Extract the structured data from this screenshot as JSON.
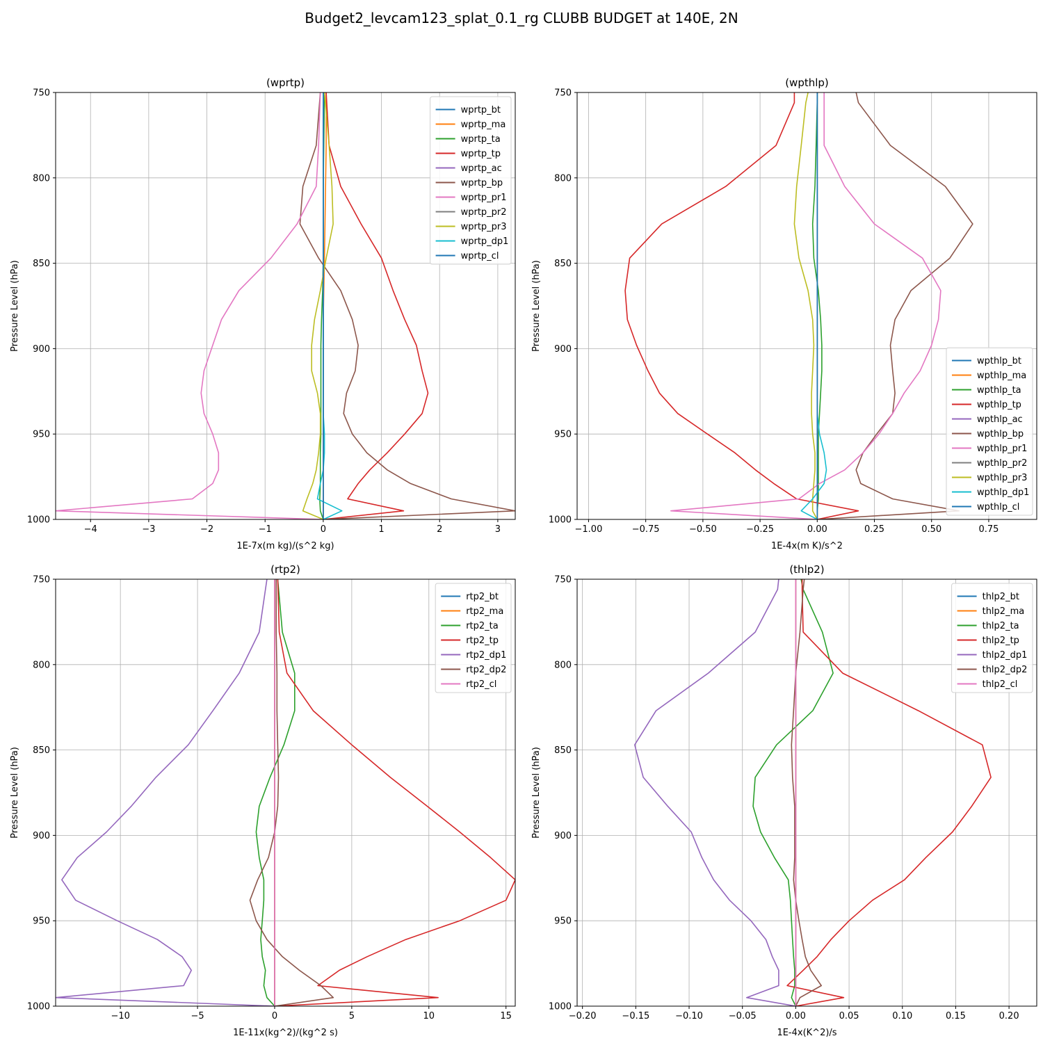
{
  "title": "Budget2_levcam123_splat_0.1_rg CLUBB BUDGET at 140E, 2N",
  "colors": [
    "#1f77b4",
    "#ff7f0e",
    "#2ca02c",
    "#d62728",
    "#9467bd",
    "#8c564b",
    "#e377c2",
    "#7f7f7f",
    "#bcbd22",
    "#17becf",
    "#1f77b4"
  ],
  "chart_data": [
    {
      "type": "line",
      "title": "(wprtp)",
      "xlabel": "1E-7x(m kg)/(s^2 kg)",
      "ylabel": "Pressure Level (hPa)",
      "xlim": [
        -4.6,
        3.3
      ],
      "ylim": [
        1000,
        750
      ],
      "xticks": [
        -4,
        -3,
        -2,
        -1,
        0,
        1,
        2,
        3
      ],
      "xtick_labels": [
        "−4",
        "−3",
        "−2",
        "−1",
        "0",
        "1",
        "2",
        "3"
      ],
      "yticks": [
        750,
        800,
        850,
        900,
        950,
        1000
      ],
      "grid": true,
      "legend_loc": "upper-right",
      "levels": [
        750,
        781,
        805,
        827,
        847,
        866,
        883,
        898,
        913,
        926,
        938,
        950,
        961,
        971,
        979,
        988,
        995,
        1000
      ],
      "series": [
        {
          "name": "wprtp_bt",
          "values": [
            0,
            0,
            0,
            0,
            0,
            0,
            0,
            0,
            0,
            0,
            0,
            0,
            0,
            0,
            0,
            0,
            0,
            0
          ]
        },
        {
          "name": "wprtp_ma",
          "values": [
            0.05,
            0.05,
            0.04,
            0.03,
            0.02,
            0.01,
            0,
            0,
            0,
            0,
            0,
            0,
            0,
            0,
            0,
            0,
            0,
            0
          ]
        },
        {
          "name": "wprtp_ta",
          "values": [
            0.02,
            0.01,
            0,
            0,
            0,
            -0.01,
            -0.03,
            -0.04,
            -0.04,
            -0.04,
            -0.04,
            -0.04,
            -0.05,
            -0.05,
            -0.05,
            -0.06,
            -0.05,
            0
          ]
        },
        {
          "name": "wprtp_tp",
          "values": [
            0.05,
            0.1,
            0.3,
            0.65,
            1.0,
            1.2,
            1.4,
            1.6,
            1.7,
            1.8,
            1.7,
            1.4,
            1.1,
            0.8,
            0.6,
            0.42,
            1.38,
            0
          ]
        },
        {
          "name": "wprtp_ac",
          "values": [
            0,
            0,
            0,
            0,
            0,
            0,
            0,
            0,
            0,
            0,
            0,
            0,
            0,
            0,
            0,
            0,
            0,
            0
          ]
        },
        {
          "name": "wprtp_bp",
          "values": [
            -0.05,
            -0.12,
            -0.35,
            -0.4,
            -0.08,
            0.3,
            0.5,
            0.6,
            0.55,
            0.4,
            0.35,
            0.5,
            0.75,
            1.1,
            1.5,
            2.2,
            3.3,
            0
          ]
        },
        {
          "name": "wprtp_pr1",
          "values": [
            -0.05,
            -0.08,
            -0.12,
            -0.45,
            -0.9,
            -1.45,
            -1.75,
            -1.9,
            -2.05,
            -2.1,
            -2.05,
            -1.9,
            -1.8,
            -1.8,
            -1.9,
            -2.25,
            -4.6,
            0
          ]
        },
        {
          "name": "wprtp_pr2",
          "values": [
            0,
            0,
            0,
            0,
            0,
            0,
            0,
            0,
            0,
            0,
            0,
            0,
            0,
            0,
            0,
            0,
            0,
            0
          ]
        },
        {
          "name": "wprtp_pr3",
          "values": [
            0.02,
            0.1,
            0.15,
            0.17,
            0.05,
            -0.05,
            -0.15,
            -0.2,
            -0.2,
            -0.1,
            -0.05,
            -0.05,
            -0.08,
            -0.12,
            -0.18,
            -0.28,
            -0.35,
            0
          ]
        },
        {
          "name": "wprtp_dp1",
          "values": [
            0,
            0,
            0,
            0,
            0,
            0,
            0,
            0,
            0,
            0,
            0,
            0.02,
            0.02,
            0,
            -0.05,
            -0.1,
            0.32,
            0
          ]
        },
        {
          "name": "wprtp_cl",
          "values": [
            0,
            0,
            0,
            0,
            0,
            0,
            0,
            0,
            0,
            0,
            0,
            0,
            0,
            0,
            0,
            0,
            0,
            0
          ]
        }
      ]
    },
    {
      "type": "line",
      "title": "(wpthlp)",
      "xlabel": "1E-4x(m K)/s^2",
      "ylabel": "Pressure Level (hPa)",
      "xlim": [
        -1.05,
        0.96
      ],
      "ylim": [
        1000,
        750
      ],
      "xticks": [
        -1.0,
        -0.75,
        -0.5,
        -0.25,
        0.0,
        0.25,
        0.5,
        0.75
      ],
      "xtick_labels": [
        "−1.00",
        "−0.75",
        "−0.50",
        "−0.25",
        "0.00",
        "0.25",
        "0.50",
        "0.75"
      ],
      "yticks": [
        750,
        800,
        850,
        900,
        950,
        1000
      ],
      "grid": true,
      "legend_loc": "lower-right",
      "levels": [
        750,
        756,
        781,
        805,
        827,
        847,
        866,
        883,
        898,
        913,
        926,
        938,
        950,
        961,
        971,
        979,
        988,
        995,
        1000
      ],
      "series": [
        {
          "name": "wpthlp_bt",
          "values": [
            0,
            0,
            0,
            0,
            0,
            0,
            0,
            0,
            0,
            0,
            0,
            0,
            0,
            0,
            0,
            0,
            0,
            0,
            0
          ]
        },
        {
          "name": "wpthlp_ma",
          "values": [
            0,
            0,
            0,
            0,
            0,
            0,
            0,
            0,
            0,
            0,
            0,
            0,
            0,
            0,
            0,
            0,
            0,
            0,
            0
          ]
        },
        {
          "name": "wpthlp_ta",
          "values": [
            0,
            0,
            -0.005,
            -0.01,
            -0.02,
            -0.015,
            0.005,
            0.015,
            0.02,
            0.02,
            0.015,
            0.01,
            0.005,
            0.005,
            0.005,
            0.005,
            0.005,
            0,
            0
          ]
        },
        {
          "name": "wpthlp_tp",
          "values": [
            -0.1,
            -0.1,
            -0.18,
            -0.4,
            -0.68,
            -0.82,
            -0.84,
            -0.83,
            -0.79,
            -0.74,
            -0.69,
            -0.61,
            -0.48,
            -0.36,
            -0.27,
            -0.19,
            -0.09,
            0.18,
            0
          ]
        },
        {
          "name": "wpthlp_ac",
          "values": [
            0,
            0,
            0,
            0,
            0,
            0,
            0,
            0,
            0,
            0,
            0,
            0,
            0,
            0,
            0,
            0,
            0,
            0,
            0
          ]
        },
        {
          "name": "wpthlp_bp",
          "values": [
            0.17,
            0.18,
            0.32,
            0.56,
            0.68,
            0.58,
            0.41,
            0.34,
            0.32,
            0.33,
            0.34,
            0.33,
            0.26,
            0.2,
            0.17,
            0.19,
            0.33,
            0.62,
            0
          ]
        },
        {
          "name": "wpthlp_pr1",
          "values": [
            0.03,
            0.03,
            0.03,
            0.12,
            0.25,
            0.46,
            0.54,
            0.53,
            0.5,
            0.45,
            0.38,
            0.33,
            0.27,
            0.2,
            0.12,
            0.01,
            -0.08,
            -0.64,
            0
          ]
        },
        {
          "name": "wpthlp_pr2",
          "values": [
            0,
            0,
            0,
            0,
            0,
            0,
            0,
            0,
            0,
            0,
            0,
            0,
            0,
            0,
            0,
            0,
            0,
            0,
            0
          ]
        },
        {
          "name": "wpthlp_pr3",
          "values": [
            -0.04,
            -0.05,
            -0.07,
            -0.09,
            -0.1,
            -0.08,
            -0.04,
            -0.02,
            -0.015,
            -0.02,
            -0.025,
            -0.025,
            -0.02,
            -0.01,
            -0.01,
            -0.015,
            -0.02,
            -0.02,
            0
          ]
        },
        {
          "name": "wpthlp_dp1",
          "values": [
            0,
            0,
            0,
            0,
            0,
            0,
            0,
            0,
            0,
            0,
            0,
            0,
            0.01,
            0.03,
            0.04,
            0.03,
            -0.02,
            -0.07,
            0
          ]
        },
        {
          "name": "wpthlp_cl",
          "values": [
            0,
            0,
            0,
            0,
            0,
            0,
            0,
            0,
            0,
            0,
            0,
            0,
            0,
            0,
            0,
            0,
            0,
            0,
            0
          ]
        }
      ]
    },
    {
      "type": "line",
      "title": "(rtp2)",
      "xlabel": "1E-11x(kg^2)/(kg^2 s)",
      "ylabel": "Pressure Level (hPa)",
      "xlim": [
        -14.2,
        15.6
      ],
      "ylim": [
        1000,
        750
      ],
      "xticks": [
        -10,
        -5,
        0,
        5,
        10,
        15
      ],
      "xtick_labels": [
        "−10",
        "−5",
        "0",
        "5",
        "10",
        "15"
      ],
      "yticks": [
        750,
        800,
        850,
        900,
        950,
        1000
      ],
      "grid": true,
      "legend_loc": "upper-right",
      "levels": [
        750,
        781,
        805,
        827,
        847,
        866,
        883,
        898,
        913,
        926,
        938,
        950,
        961,
        971,
        979,
        988,
        995,
        1000
      ],
      "series": [
        {
          "name": "rtp2_bt",
          "values": [
            0,
            0,
            0,
            0,
            0,
            0,
            0,
            0,
            0,
            0,
            0,
            0,
            0,
            0,
            0,
            0,
            0,
            0
          ]
        },
        {
          "name": "rtp2_ma",
          "values": [
            0,
            0,
            0,
            0,
            0,
            0,
            0,
            0,
            0,
            0,
            0,
            0,
            0,
            0,
            0,
            0,
            0,
            0
          ]
        },
        {
          "name": "rtp2_ta",
          "values": [
            0.2,
            0.5,
            1.3,
            1.3,
            0.6,
            -0.3,
            -1.0,
            -1.2,
            -1.0,
            -0.7,
            -0.7,
            -0.8,
            -0.9,
            -0.8,
            -0.6,
            -0.7,
            -0.5,
            0
          ]
        },
        {
          "name": "rtp2_tp",
          "values": [
            0.2,
            0.3,
            0.8,
            2.5,
            5.0,
            7.5,
            9.9,
            12.0,
            14.0,
            15.6,
            15.0,
            12.0,
            8.5,
            6.0,
            4.2,
            2.8,
            10.6,
            0
          ]
        },
        {
          "name": "rtp2_dp1",
          "values": [
            -0.5,
            -1.0,
            -2.3,
            -4.0,
            -5.6,
            -7.7,
            -9.3,
            -10.9,
            -12.8,
            -13.8,
            -12.9,
            -10.2,
            -7.6,
            -6.0,
            -5.4,
            -5.9,
            -14.2,
            0
          ]
        },
        {
          "name": "rtp2_dp2",
          "values": [
            0.1,
            0.1,
            0.15,
            0.15,
            0.2,
            0.25,
            0.2,
            0,
            -0.4,
            -1.1,
            -1.6,
            -1.2,
            -0.5,
            0.5,
            1.6,
            3.0,
            3.8,
            0
          ]
        },
        {
          "name": "rtp2_cl",
          "values": [
            0,
            0,
            0,
            0,
            0,
            0,
            0,
            0,
            0,
            0,
            0,
            0,
            0,
            0,
            0,
            0,
            0,
            0
          ]
        }
      ]
    },
    {
      "type": "line",
      "title": "(thlp2)",
      "xlabel": "1E-4x(K^2)/s",
      "ylabel": "Pressure Level (hPa)",
      "xlim": [
        -0.205,
        0.226
      ],
      "ylim": [
        1000,
        750
      ],
      "xticks": [
        -0.2,
        -0.15,
        -0.1,
        -0.05,
        0.0,
        0.05,
        0.1,
        0.15,
        0.2
      ],
      "xtick_labels": [
        "−0.20",
        "−0.15",
        "−0.10",
        "−0.05",
        "0.00",
        "0.05",
        "0.10",
        "0.15",
        "0.20"
      ],
      "yticks": [
        750,
        800,
        850,
        900,
        950,
        1000
      ],
      "grid": true,
      "legend_loc": "upper-right",
      "levels": [
        750,
        756,
        781,
        805,
        827,
        847,
        866,
        883,
        898,
        913,
        926,
        938,
        950,
        961,
        971,
        979,
        988,
        995,
        1000
      ],
      "series": [
        {
          "name": "thlp2_bt",
          "values": [
            0,
            0,
            0,
            0,
            0,
            0,
            0,
            0,
            0,
            0,
            0,
            0,
            0,
            0,
            0,
            0,
            0,
            0,
            0
          ]
        },
        {
          "name": "thlp2_ma",
          "values": [
            0,
            0,
            0,
            0,
            0,
            0,
            0,
            0,
            0,
            0,
            0,
            0,
            0,
            0,
            0,
            0,
            0,
            0,
            0
          ]
        },
        {
          "name": "thlp2_ta",
          "values": [
            0.005,
            0.007,
            0.025,
            0.035,
            0.016,
            -0.018,
            -0.038,
            -0.04,
            -0.033,
            -0.02,
            -0.007,
            -0.005,
            -0.004,
            -0.003,
            -0.002,
            -0.001,
            -0.001,
            -0.004,
            0
          ]
        },
        {
          "name": "thlp2_tp",
          "values": [
            0.006,
            0.006,
            0.007,
            0.044,
            0.115,
            0.175,
            0.183,
            0.165,
            0.147,
            0.122,
            0.102,
            0.072,
            0.05,
            0.033,
            0.02,
            0.007,
            -0.008,
            0.045,
            0
          ]
        },
        {
          "name": "thlp2_dp1",
          "values": [
            -0.016,
            -0.017,
            -0.038,
            -0.082,
            -0.131,
            -0.151,
            -0.143,
            -0.12,
            -0.098,
            -0.088,
            -0.077,
            -0.062,
            -0.042,
            -0.028,
            -0.022,
            -0.016,
            -0.016,
            -0.046,
            0
          ]
        },
        {
          "name": "thlp2_dp2",
          "values": [
            0.008,
            0.007,
            0.004,
            0,
            -0.002,
            -0.004,
            -0.003,
            -0.001,
            -0.001,
            -0.001,
            -0.002,
            0,
            0.003,
            0.006,
            0.009,
            0.014,
            0.024,
            0.004,
            0
          ]
        },
        {
          "name": "thlp2_cl",
          "values": [
            0,
            0,
            0,
            0,
            0,
            0,
            0,
            0,
            0,
            0,
            0,
            0,
            0,
            0,
            0,
            0,
            0,
            0,
            0
          ]
        }
      ]
    }
  ]
}
